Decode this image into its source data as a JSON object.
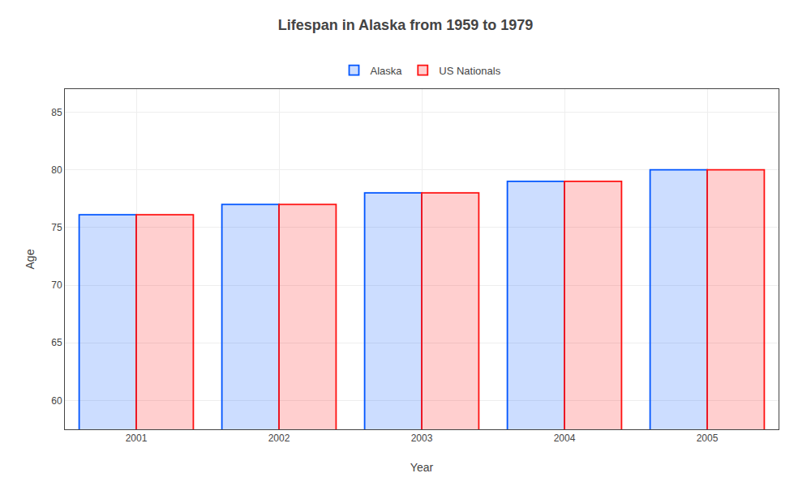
{
  "chart_data": {
    "type": "bar",
    "title": "Lifespan in Alaska from 1959 to 1979",
    "x_label": "Year",
    "y_label": "Age",
    "categories": [
      2001,
      2002,
      2003,
      2004,
      2005
    ],
    "series": [
      {
        "name": "Alaska",
        "color": "#0055ff",
        "values": [
          76.1,
          77.0,
          78.0,
          79.0,
          80.0
        ]
      },
      {
        "name": "US Nationals",
        "color": "#ff1111",
        "values": [
          76.1,
          77.0,
          78.0,
          79.0,
          80.0
        ]
      }
    ],
    "ylim": [
      57.5,
      87
    ],
    "yticks": [
      60,
      65,
      70,
      75,
      80,
      85
    ],
    "grid": true,
    "legend": "top"
  }
}
